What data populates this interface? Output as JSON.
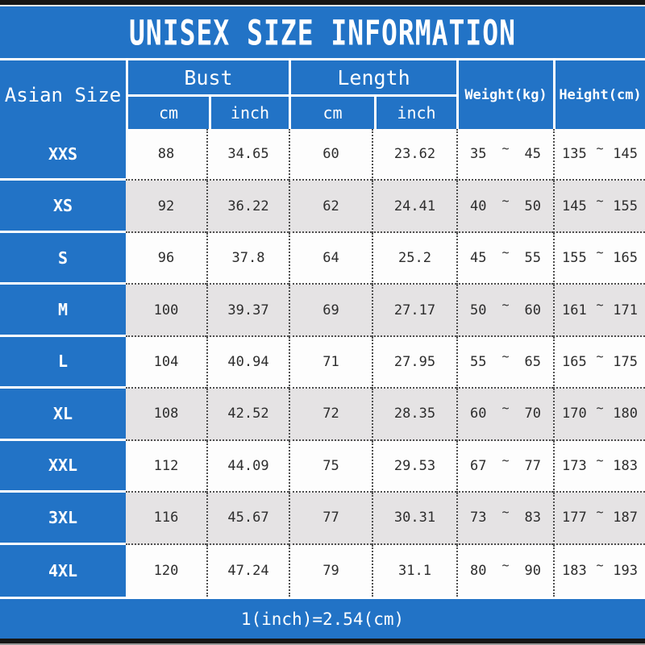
{
  "title": "UNISEX SIZE INFORMATION",
  "footer_note": "1(inch)=2.54(cm)",
  "colors": {
    "accent_blue": "#2273c6",
    "alt_row_gray": "#e5e3e4",
    "text_dark": "#2d2d2d"
  },
  "table": {
    "corner_header": "Asian Size",
    "groups": [
      {
        "label": "Bust",
        "sub": [
          "cm",
          "inch"
        ]
      },
      {
        "label": "Length",
        "sub": [
          "cm",
          "inch"
        ]
      }
    ],
    "single_headers": [
      {
        "label": "Weight(kg)"
      },
      {
        "label": "Height(cm)"
      }
    ],
    "tilde": "~",
    "rows": [
      {
        "size": "XXS",
        "bust_cm": "88",
        "bust_inch": "34.65",
        "length_cm": "60",
        "length_inch": "23.62",
        "weight_min": "35",
        "weight_max": "45",
        "height_min": "135",
        "height_max": "145"
      },
      {
        "size": "XS",
        "bust_cm": "92",
        "bust_inch": "36.22",
        "length_cm": "62",
        "length_inch": "24.41",
        "weight_min": "40",
        "weight_max": "50",
        "height_min": "145",
        "height_max": "155"
      },
      {
        "size": "S",
        "bust_cm": "96",
        "bust_inch": "37.8",
        "length_cm": "64",
        "length_inch": "25.2",
        "weight_min": "45",
        "weight_max": "55",
        "height_min": "155",
        "height_max": "165"
      },
      {
        "size": "M",
        "bust_cm": "100",
        "bust_inch": "39.37",
        "length_cm": "69",
        "length_inch": "27.17",
        "weight_min": "50",
        "weight_max": "60",
        "height_min": "161",
        "height_max": "171"
      },
      {
        "size": "L",
        "bust_cm": "104",
        "bust_inch": "40.94",
        "length_cm": "71",
        "length_inch": "27.95",
        "weight_min": "55",
        "weight_max": "65",
        "height_min": "165",
        "height_max": "175"
      },
      {
        "size": "XL",
        "bust_cm": "108",
        "bust_inch": "42.52",
        "length_cm": "72",
        "length_inch": "28.35",
        "weight_min": "60",
        "weight_max": "70",
        "height_min": "170",
        "height_max": "180"
      },
      {
        "size": "XXL",
        "bust_cm": "112",
        "bust_inch": "44.09",
        "length_cm": "75",
        "length_inch": "29.53",
        "weight_min": "67",
        "weight_max": "77",
        "height_min": "173",
        "height_max": "183"
      },
      {
        "size": "3XL",
        "bust_cm": "116",
        "bust_inch": "45.67",
        "length_cm": "77",
        "length_inch": "30.31",
        "weight_min": "73",
        "weight_max": "83",
        "height_min": "177",
        "height_max": "187"
      },
      {
        "size": "4XL",
        "bust_cm": "120",
        "bust_inch": "47.24",
        "length_cm": "79",
        "length_inch": "31.1",
        "weight_min": "80",
        "weight_max": "90",
        "height_min": "183",
        "height_max": "193"
      }
    ]
  }
}
